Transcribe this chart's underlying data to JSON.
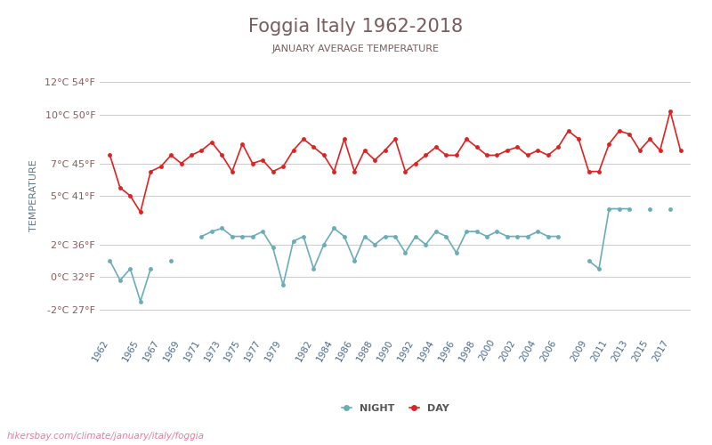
{
  "title": "Foggia Italy 1962-2018",
  "subtitle": "JANUARY AVERAGE TEMPERATURE",
  "ylabel": "TEMPERATURE",
  "footer": "hikersbay.com/climate/january/italy/foggia",
  "background_color": "#ffffff",
  "title_color": "#7a5c5c",
  "subtitle_color": "#7a5c5c",
  "axis_label_color": "#5a7a8a",
  "tick_color": "#8a5a5a",
  "grid_color": "#cccccc",
  "day_color": "#dd2222",
  "night_color": "#6aacb8",
  "years": [
    1962,
    1963,
    1964,
    1965,
    1966,
    1967,
    1968,
    1969,
    1970,
    1971,
    1972,
    1973,
    1974,
    1975,
    1976,
    1977,
    1978,
    1979,
    1980,
    1981,
    1982,
    1983,
    1984,
    1985,
    1986,
    1987,
    1988,
    1989,
    1990,
    1991,
    1992,
    1993,
    1994,
    1995,
    1996,
    1997,
    1998,
    1999,
    2000,
    2001,
    2002,
    2003,
    2004,
    2005,
    2006,
    2007,
    2008,
    2009,
    2010,
    2011,
    2012,
    2013,
    2014,
    2015,
    2016,
    2017,
    2018
  ],
  "day_temps": [
    7.5,
    5.5,
    5.0,
    4.0,
    6.5,
    6.8,
    7.5,
    7.0,
    7.5,
    7.8,
    8.3,
    7.5,
    6.5,
    8.2,
    7.0,
    7.2,
    6.5,
    6.8,
    7.8,
    8.5,
    8.0,
    7.5,
    6.5,
    8.5,
    6.5,
    7.8,
    7.2,
    7.8,
    8.5,
    6.5,
    7.0,
    7.5,
    8.0,
    7.5,
    7.5,
    8.5,
    8.0,
    7.5,
    7.5,
    7.8,
    8.0,
    7.5,
    7.8,
    7.5,
    8.0,
    9.0,
    8.5,
    6.5,
    6.5,
    8.2,
    9.0,
    8.8,
    7.8,
    8.5,
    7.8,
    10.2,
    7.8
  ],
  "night_temps": [
    1.0,
    -0.2,
    0.5,
    -1.5,
    0.5,
    null,
    1.0,
    null,
    null,
    2.5,
    2.8,
    3.0,
    2.5,
    2.5,
    2.5,
    2.8,
    1.8,
    -0.5,
    2.2,
    2.5,
    0.5,
    2.0,
    3.0,
    2.5,
    1.0,
    2.5,
    2.0,
    2.5,
    2.5,
    1.5,
    2.5,
    2.0,
    2.8,
    2.5,
    1.5,
    2.8,
    2.8,
    2.5,
    2.8,
    2.5,
    2.5,
    2.5,
    2.8,
    2.5,
    2.5,
    null,
    null,
    1.0,
    0.5,
    4.2,
    4.2,
    4.2,
    null,
    4.2,
    null,
    4.2,
    null
  ],
  "yticks_c": [
    -2,
    0,
    2,
    5,
    7,
    10,
    12
  ],
  "yticks_f": [
    27,
    32,
    36,
    41,
    45,
    50,
    54
  ],
  "xtick_labels": [
    "1962",
    "1965",
    "1967",
    "1969",
    "1971",
    "1973",
    "1975",
    "1977",
    "1979",
    "1982",
    "1984",
    "1986",
    "1988",
    "1990",
    "1992",
    "1994",
    "1996",
    "1998",
    "2000",
    "2002",
    "2004",
    "2006",
    "2009",
    "2011",
    "2013",
    "2015",
    "2017"
  ],
  "xtick_positions": [
    1962,
    1965,
    1967,
    1969,
    1971,
    1973,
    1975,
    1977,
    1979,
    1982,
    1984,
    1986,
    1988,
    1990,
    1992,
    1994,
    1996,
    1998,
    2000,
    2002,
    2004,
    2006,
    2009,
    2011,
    2013,
    2015,
    2017
  ],
  "ylim": [
    -3.5,
    13.5
  ],
  "xlim": [
    1961,
    2019
  ]
}
